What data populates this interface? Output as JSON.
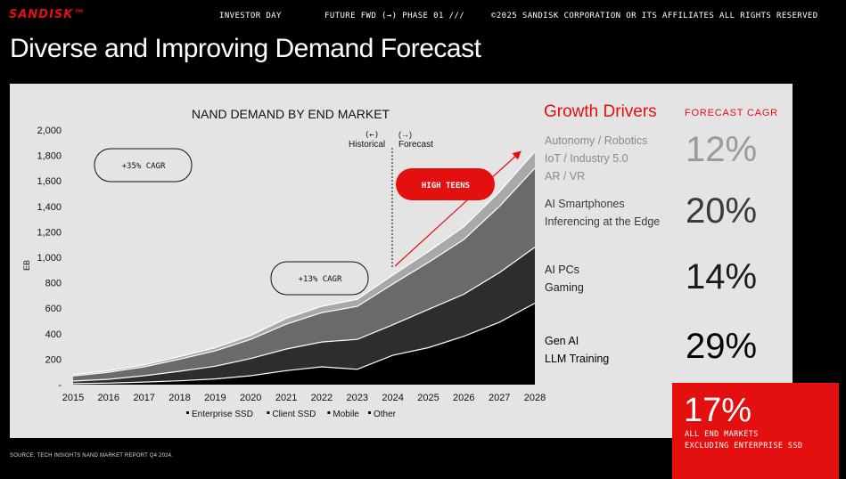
{
  "header": {
    "logo": "SANDISK™",
    "event": "INVESTOR DAY",
    "section": "FUTURE FWD (→) PHASE 01 ///",
    "copyright": "©2025 SANDISK CORPORATION OR ITS AFFILIATES ALL RIGHTS RESERVED"
  },
  "page_title": "Diverse and Improving Demand Forecast",
  "chart_data": {
    "type": "area",
    "stacked": true,
    "title": "NAND DEMAND BY END MARKET",
    "ylabel": "EB",
    "xlabel": "",
    "ylim": [
      0,
      2000
    ],
    "yticks": [
      "2,000",
      "1,800",
      "1,600",
      "1,400",
      "1,200",
      "1,000",
      "800",
      "600",
      "400",
      "200",
      "-"
    ],
    "x": [
      "2015",
      "2016",
      "2017",
      "2018",
      "2019",
      "2020",
      "2021",
      "2022",
      "2023",
      "2024",
      "2025",
      "2026",
      "2027",
      "2028"
    ],
    "series": [
      {
        "name": "Enterprise SSD",
        "color": "#000000",
        "values": [
          8,
          12,
          20,
          30,
          45,
          70,
          110,
          140,
          120,
          230,
          290,
          380,
          490,
          640
        ]
      },
      {
        "name": "Client SSD",
        "color": "#2d2d2d",
        "values": [
          20,
          30,
          50,
          75,
          100,
          135,
          170,
          195,
          235,
          240,
          300,
          330,
          390,
          440
        ]
      },
      {
        "name": "Mobile",
        "color": "#6a6a6a",
        "values": [
          40,
          55,
          70,
          95,
          120,
          150,
          195,
          230,
          260,
          320,
          370,
          430,
          520,
          620
        ]
      },
      {
        "name": "Other",
        "color": "#a8a8a8",
        "values": [
          10,
          13,
          15,
          20,
          25,
          30,
          45,
          50,
          55,
          70,
          85,
          100,
          115,
          130
        ]
      }
    ],
    "divider_labels": {
      "historical": "Historical",
      "historical_arrow": "(←)",
      "forecast": "Forecast",
      "forecast_arrow": "(→)"
    },
    "callouts": {
      "cagr_historical": "+35% CAGR",
      "cagr_recent": "+13% CAGR",
      "forecast_trend": "HIGH TEENS"
    },
    "legend": [
      "Enterprise SSD",
      "Client SSD",
      "Mobile",
      "Other"
    ],
    "legend_position": "bottom"
  },
  "drivers": {
    "heading": "Growth Drivers",
    "cagr_heading": "FORECAST CAGR",
    "items": [
      {
        "lines": [
          "Autonomy / Robotics",
          "IoT / Industry 5.0",
          "AR / VR"
        ],
        "value": "12%"
      },
      {
        "lines": [
          "AI Smartphones",
          "Inferencing at the Edge"
        ],
        "value": "20%"
      },
      {
        "lines": [
          "AI PCs",
          "Gaming"
        ],
        "value": "14%"
      },
      {
        "lines": [
          "Gen AI",
          "LLM Training"
        ],
        "value": "29%"
      }
    ],
    "total": {
      "value": "17%",
      "label_line1": "ALL END MARKETS",
      "label_line2": "EXCLUDING ENTERPRISE SSD"
    }
  },
  "source": "SOURCE: TECH INSIGHTS NAND MARKET REPORT Q4 2024.",
  "colors": {
    "brand_red": "#e3100f",
    "panel_bg": "#e4e4e4",
    "page_bg": "#000000"
  }
}
